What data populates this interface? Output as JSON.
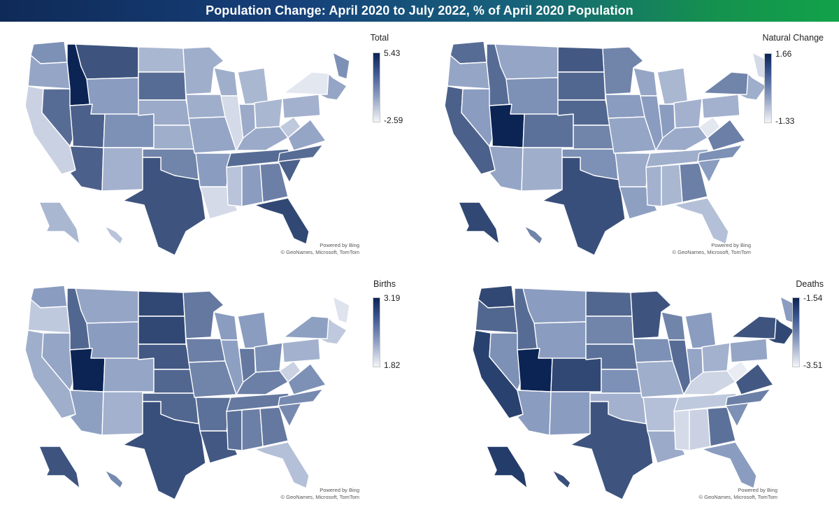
{
  "title": "Population Change: April 2020 to July 2022, % of April 2020 Population",
  "attribution": {
    "line1": "Powered by Bing",
    "line2": "© GeoNames, Microsoft, TomTom"
  },
  "colors": {
    "low": "#f4f5f9",
    "mid": "#8a9cc0",
    "high": "#0b2454",
    "border": "#ffffff"
  },
  "panels": [
    {
      "id": "total",
      "label": "Total",
      "max": "5.43",
      "min": "-2.59",
      "regions": {
        "WA": 0.55,
        "OR": 0.45,
        "CA": 0.2,
        "NV": 0.7,
        "ID": 1.0,
        "MT": 0.8,
        "WY": 0.5,
        "UT": 0.75,
        "CO": 0.55,
        "AZ": 0.75,
        "NM": 0.38,
        "ND": 0.35,
        "SD": 0.7,
        "NE": 0.42,
        "KS": 0.4,
        "OK": 0.6,
        "TX": 0.8,
        "MN": 0.4,
        "IA": 0.4,
        "MO": 0.45,
        "AR": 0.5,
        "LA": 0.15,
        "WI": 0.4,
        "IL": 0.15,
        "MI": 0.35,
        "IN": 0.42,
        "OH": 0.35,
        "KY": 0.42,
        "TN": 0.7,
        "MS": 0.28,
        "AL": 0.5,
        "GA": 0.62,
        "FL": 0.85,
        "SC": 0.75,
        "NC": 0.7,
        "VA": 0.45,
        "WV": 0.25,
        "PA": 0.38,
        "NY": 0.08,
        "NE_states": 0.45,
        "ME": 0.55,
        "AK": 0.35,
        "HI": 0.28
      }
    },
    {
      "id": "natural",
      "label": "Natural Change",
      "max": "1.66",
      "min": "-1.33",
      "regions": {
        "WA": 0.7,
        "OR": 0.45,
        "CA": 0.75,
        "NV": 0.5,
        "ID": 0.7,
        "MT": 0.45,
        "WY": 0.55,
        "UT": 1.0,
        "CO": 0.68,
        "AZ": 0.45,
        "NM": 0.4,
        "ND": 0.78,
        "SD": 0.72,
        "NE": 0.72,
        "KS": 0.6,
        "OK": 0.55,
        "TX": 0.82,
        "MN": 0.6,
        "IA": 0.5,
        "MO": 0.45,
        "AR": 0.42,
        "LA": 0.48,
        "WI": 0.45,
        "IL": 0.5,
        "MI": 0.35,
        "IN": 0.5,
        "OH": 0.38,
        "KY": 0.42,
        "TN": 0.4,
        "MS": 0.38,
        "AL": 0.35,
        "GA": 0.62,
        "FL": 0.3,
        "SC": 0.5,
        "NC": 0.55,
        "VA": 0.62,
        "WV": 0.08,
        "PA": 0.38,
        "NY": 0.6,
        "NE_states": 0.4,
        "ME": 0.15,
        "AK": 0.85,
        "HI": 0.6
      }
    },
    {
      "id": "births",
      "label": "Births",
      "max": "3.19",
      "min": "1.82",
      "regions": {
        "WA": 0.5,
        "OR": 0.25,
        "CA": 0.4,
        "NV": 0.45,
        "ID": 0.72,
        "MT": 0.45,
        "WY": 0.5,
        "UT": 1.0,
        "CO": 0.45,
        "AZ": 0.48,
        "NM": 0.38,
        "ND": 0.85,
        "SD": 0.85,
        "NE": 0.78,
        "KS": 0.72,
        "OK": 0.72,
        "TX": 0.82,
        "MN": 0.65,
        "IA": 0.62,
        "MO": 0.6,
        "AR": 0.68,
        "LA": 0.78,
        "WI": 0.5,
        "IL": 0.48,
        "MI": 0.5,
        "IN": 0.65,
        "OH": 0.55,
        "KY": 0.62,
        "TN": 0.65,
        "MS": 0.68,
        "AL": 0.62,
        "GA": 0.65,
        "FL": 0.3,
        "SC": 0.58,
        "NC": 0.58,
        "VA": 0.55,
        "WV": 0.2,
        "PA": 0.38,
        "NY": 0.48,
        "NE_states": 0.25,
        "ME": 0.1,
        "AK": 0.8,
        "HI": 0.58
      }
    },
    {
      "id": "deaths",
      "label": "Deaths",
      "max": "-1.54",
      "min": "-3.51",
      "regions": {
        "WA": 0.85,
        "OR": 0.72,
        "CA": 0.88,
        "NV": 0.55,
        "ID": 0.7,
        "MT": 0.5,
        "WY": 0.5,
        "UT": 1.0,
        "CO": 0.85,
        "AZ": 0.5,
        "NM": 0.5,
        "ND": 0.72,
        "SD": 0.6,
        "NE": 0.68,
        "KS": 0.55,
        "OK": 0.38,
        "TX": 0.8,
        "MN": 0.8,
        "IA": 0.55,
        "MO": 0.4,
        "AR": 0.3,
        "LA": 0.42,
        "WI": 0.6,
        "IL": 0.7,
        "MI": 0.5,
        "IN": 0.45,
        "OH": 0.38,
        "KY": 0.18,
        "TN": 0.25,
        "MS": 0.15,
        "AL": 0.2,
        "GA": 0.68,
        "FL": 0.5,
        "SC": 0.55,
        "NC": 0.62,
        "VA": 0.78,
        "WV": 0.05,
        "PA": 0.45,
        "NY": 0.8,
        "NE_states": 0.85,
        "ME": 0.5,
        "AK": 0.9,
        "HI": 0.82
      }
    }
  ]
}
